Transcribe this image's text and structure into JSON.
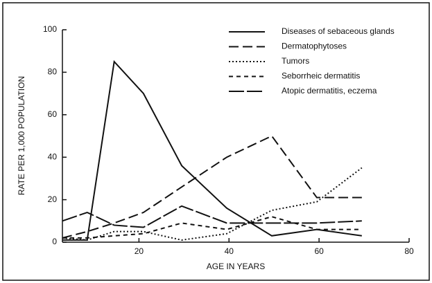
{
  "chart_data": {
    "type": "line",
    "xlabel": "AGE IN YEARS",
    "ylabel": "RATE PER 1,000 POPULATION",
    "x": [
      3,
      8.5,
      14.5,
      21,
      29.5,
      39.5,
      49.5,
      59.5,
      69.5
    ],
    "xlim": [
      3,
      80
    ],
    "xticks": [
      20,
      40,
      60,
      80
    ],
    "ylim": [
      0,
      100
    ],
    "yticks": [
      0,
      20,
      40,
      60,
      80,
      100
    ],
    "grid": false,
    "legend": "upper right",
    "series": [
      {
        "name": "Diseases of sebaceous glands",
        "color": "#111111",
        "dash": "none",
        "values": [
          1,
          1,
          85,
          70,
          36,
          16,
          3,
          6,
          3
        ]
      },
      {
        "name": "Dermatophytoses",
        "color": "#111111",
        "dash": "14 6",
        "values": [
          2,
          5,
          9,
          14,
          26,
          40,
          50,
          21,
          21
        ]
      },
      {
        "name": "Tumors",
        "color": "#111111",
        "dash": "2 3",
        "values": [
          2,
          1,
          5,
          5,
          1,
          4,
          15,
          19,
          35
        ]
      },
      {
        "name": "Seborrheic dermatitis",
        "color": "#111111",
        "dash": "6 5",
        "values": [
          2,
          2,
          3,
          4,
          9,
          6,
          12,
          6,
          6
        ]
      },
      {
        "name": "Atopic dermatitis, eczema",
        "color": "#111111",
        "dash": "22 4",
        "values": [
          10,
          14,
          8,
          7,
          17,
          9,
          9,
          9,
          10
        ]
      }
    ]
  }
}
